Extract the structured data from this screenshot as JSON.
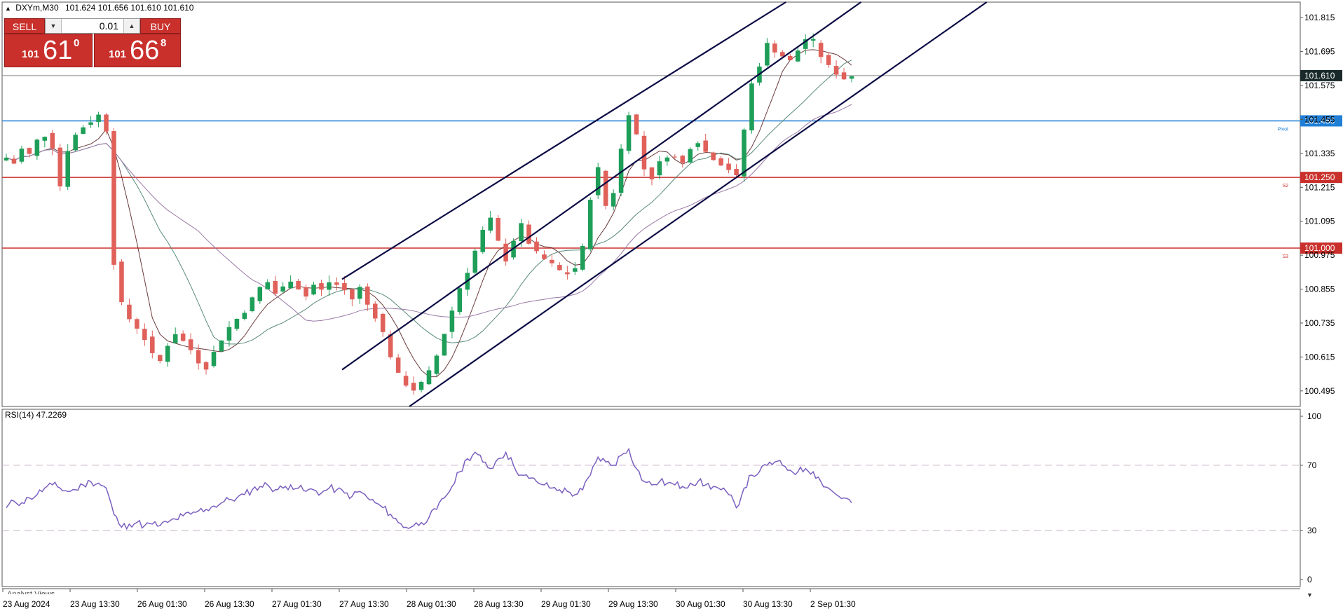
{
  "header": {
    "symbol": "DXYm,M30",
    "ohlc": "101.624 101.656 101.610 101.610"
  },
  "trade_panel": {
    "sell_label": "SELL",
    "buy_label": "BUY",
    "lot": "0.01",
    "sell_prefix": "101",
    "sell_big": "61",
    "sell_sup": "0",
    "buy_prefix": "101",
    "buy_big": "66",
    "buy_sup": "8"
  },
  "rsi_label": "RSI(14) 47.2269",
  "analyst_label": "Analyst Views",
  "colors": {
    "bull": "#1e9e58",
    "bear": "#e0605a",
    "channel": "#0b0b45",
    "pivot": "#1f7fd6",
    "support": "#c9302c",
    "rsi": "#7b5fc0"
  },
  "chart_data": [
    {
      "type": "candlestick",
      "title": "",
      "ylim": [
        100.44,
        101.87
      ],
      "y_ticks": [
        "101.815",
        "101.695",
        "101.575",
        "101.455",
        "101.335",
        "101.215",
        "101.095",
        "100.975",
        "100.855",
        "100.735",
        "100.615",
        "100.495"
      ],
      "x_ticks": [
        "23 Aug 2024",
        "23 Aug 13:30",
        "26 Aug 01:30",
        "26 Aug 13:30",
        "27 Aug 01:30",
        "27 Aug 13:30",
        "28 Aug 01:30",
        "28 Aug 13:30",
        "29 Aug 01:30",
        "29 Aug 13:30",
        "30 Aug 01:30",
        "30 Aug 13:30",
        "2 Sep 01:30"
      ],
      "close_path": [
        101.32,
        101.3,
        101.35,
        101.33,
        101.38,
        101.4,
        101.36,
        101.22,
        101.35,
        101.4,
        101.43,
        101.45,
        101.47,
        101.42,
        100.95,
        100.8,
        100.75,
        100.72,
        100.68,
        100.62,
        100.6,
        100.66,
        100.7,
        100.67,
        100.64,
        100.6,
        100.58,
        100.63,
        100.68,
        100.72,
        100.75,
        100.78,
        100.82,
        100.86,
        100.88,
        100.84,
        100.86,
        100.89,
        100.86,
        100.83,
        100.87,
        100.85,
        100.88,
        100.87,
        100.85,
        100.82,
        100.86,
        100.8,
        100.76,
        100.7,
        100.62,
        100.55,
        100.52,
        100.5,
        100.52,
        100.56,
        100.62,
        100.7,
        100.78,
        100.86,
        100.92,
        100.99,
        101.06,
        101.1,
        101.02,
        100.96,
        101.03,
        101.08,
        101.02,
        100.98,
        100.96,
        100.94,
        100.92,
        100.91,
        100.93,
        101.0,
        101.18,
        101.28,
        101.15,
        101.2,
        101.35,
        101.48,
        101.4,
        101.28,
        101.25,
        101.3,
        101.33,
        101.32,
        101.3,
        101.36,
        101.38,
        101.34,
        101.32,
        101.3,
        101.28,
        101.25,
        101.42,
        101.58,
        101.65,
        101.72,
        101.7,
        101.68,
        101.66,
        101.7,
        101.74,
        101.73,
        101.68,
        101.64,
        101.62,
        101.6,
        101.61
      ],
      "levels": [
        {
          "label": "101.610",
          "value": 101.61,
          "kind": "current"
        },
        {
          "label": "101.450",
          "value": 101.45,
          "kind": "pivot",
          "tag": "Pivot"
        },
        {
          "label": "101.250",
          "value": 101.25,
          "kind": "support",
          "tag": "S2"
        },
        {
          "label": "101.000",
          "value": 101.0,
          "kind": "support",
          "tag": "S3"
        }
      ],
      "channel": {
        "lines": [
          {
            "from": [
              "27 Aug 13:30",
              100.89
            ],
            "to": [
              "2 Sep 01:30",
              101.93
            ]
          },
          {
            "from": [
              "27 Aug 13:30",
              100.57
            ],
            "to": [
              "2 Sep 01:30",
              101.75
            ]
          },
          {
            "from": [
              "28 Aug 01:30",
              100.44
            ],
            "to": [
              "2 Sep 01:30",
              101.44
            ]
          }
        ]
      }
    },
    {
      "type": "line",
      "title": "RSI(14) 47.2269",
      "ylim": [
        0,
        100
      ],
      "y_ticks": [
        "100",
        "70",
        "30",
        "0"
      ],
      "levels": [
        70,
        30
      ],
      "values": [
        44,
        48,
        47,
        50,
        52,
        56,
        58,
        56,
        54,
        55,
        58,
        60,
        59,
        56,
        40,
        32,
        34,
        35,
        33,
        34,
        33,
        35,
        37,
        39,
        40,
        42,
        43,
        45,
        47,
        49,
        50,
        52,
        55,
        57,
        58,
        55,
        56,
        58,
        56,
        54,
        55,
        53,
        56,
        55,
        53,
        51,
        54,
        50,
        47,
        44,
        40,
        35,
        32,
        33,
        35,
        38,
        43,
        50,
        57,
        66,
        74,
        78,
        72,
        68,
        74,
        78,
        70,
        64,
        62,
        60,
        58,
        56,
        55,
        54,
        52,
        55,
        64,
        75,
        72,
        70,
        76,
        80,
        68,
        60,
        58,
        60,
        59,
        58,
        57,
        59,
        60,
        58,
        57,
        55,
        52,
        44,
        56,
        64,
        66,
        70,
        72,
        70,
        67,
        66,
        68,
        66,
        60,
        56,
        52,
        50,
        47
      ]
    }
  ]
}
